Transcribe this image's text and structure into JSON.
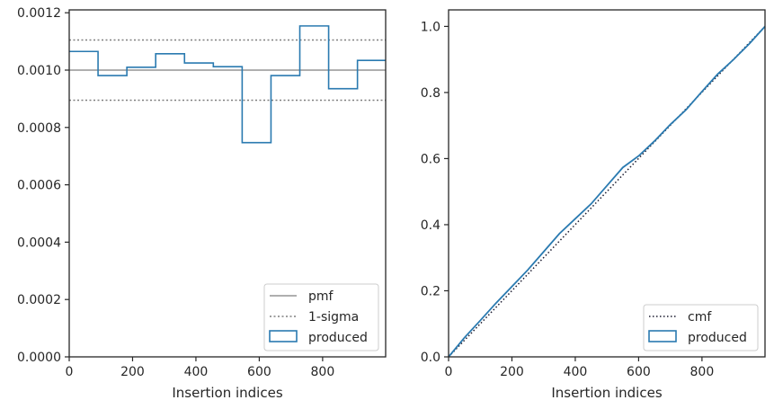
{
  "colors": {
    "hist": "#2a7ab0",
    "pmf": "#7f7f7f",
    "sigma": "#7f7f7f",
    "cmf": "#1a1a2e",
    "axes": "#262626"
  },
  "chart_data": [
    {
      "type": "histogram-step",
      "xlabel": "Insertion indices",
      "ylabel": "",
      "xlim": [
        0,
        999
      ],
      "ylim": [
        0,
        0.00121
      ],
      "xticks": [
        0,
        200,
        400,
        600,
        800
      ],
      "xtick_labels": [
        "0",
        "200",
        "400",
        "600",
        "800"
      ],
      "yticks": [
        0,
        0.0002,
        0.0004,
        0.0006,
        0.0008,
        0.001,
        0.0012
      ],
      "ytick_labels": [
        "0.0000",
        "0.0002",
        "0.0004",
        "0.0006",
        "0.0008",
        "0.0010",
        "0.0012"
      ],
      "bin_edges": [
        0,
        91,
        182,
        273,
        364,
        455,
        546,
        637,
        728,
        819,
        910,
        1001
      ],
      "values": [
        0.001065,
        0.000981,
        0.00101,
        0.001057,
        0.001025,
        0.001012,
        0.000747,
        0.000981,
        0.001154,
        0.000935,
        0.001034
      ],
      "pmf": 0.001,
      "sigma_band": [
        0.000895,
        0.001105
      ],
      "legend": {
        "position": "lower-right",
        "entries": [
          "pmf",
          "1-sigma",
          "produced"
        ]
      },
      "grid": false
    },
    {
      "type": "line",
      "xlabel": "Insertion indices",
      "ylabel": "",
      "xlim": [
        0,
        999
      ],
      "ylim": [
        0,
        1.05
      ],
      "xticks": [
        0,
        200,
        400,
        600,
        800
      ],
      "xtick_labels": [
        "0",
        "200",
        "400",
        "600",
        "800"
      ],
      "yticks": [
        0,
        0.2,
        0.4,
        0.6,
        0.8,
        1.0
      ],
      "ytick_labels": [
        "0.0",
        "0.2",
        "0.4",
        "0.6",
        "0.8",
        "1.0"
      ],
      "series": [
        {
          "name": "cmf",
          "style": "dotted",
          "x": [
            0,
            999
          ],
          "y": [
            0,
            1.0
          ]
        },
        {
          "name": "produced",
          "style": "step",
          "x": [
            0,
            50,
            100,
            150,
            200,
            250,
            300,
            350,
            400,
            450,
            500,
            550,
            600,
            650,
            700,
            750,
            800,
            850,
            900,
            950,
            999
          ],
          "y": [
            0,
            0.058,
            0.11,
            0.163,
            0.213,
            0.263,
            0.318,
            0.373,
            0.418,
            0.463,
            0.518,
            0.573,
            0.608,
            0.653,
            0.703,
            0.748,
            0.803,
            0.856,
            0.9,
            0.948,
            1.0
          ]
        }
      ],
      "legend": {
        "position": "lower-right",
        "entries": [
          "cmf",
          "produced"
        ]
      },
      "grid": false
    }
  ]
}
